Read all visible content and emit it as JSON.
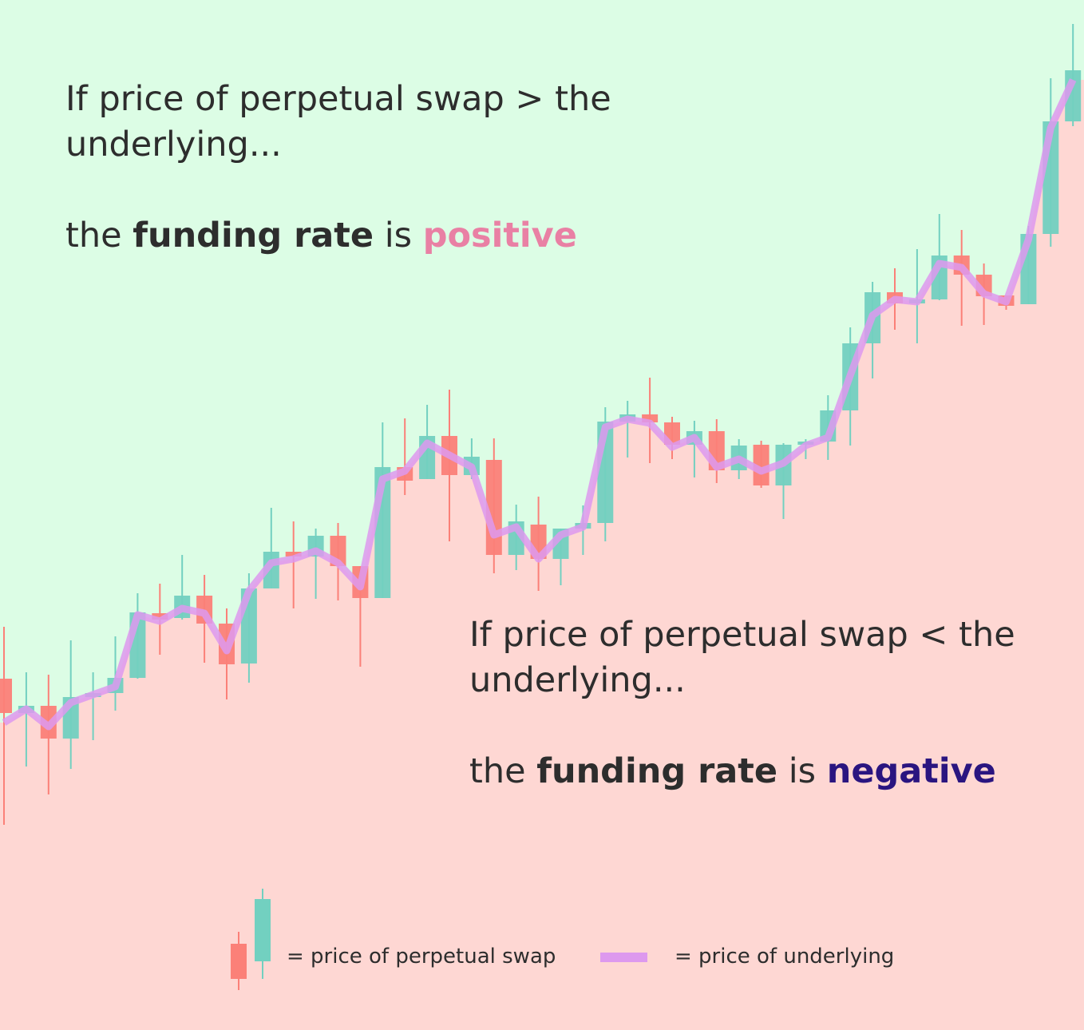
{
  "chart_data": {
    "type": "candlestick",
    "ylim": [
      0,
      1290
    ],
    "annotations": [
      {
        "text": "If price of perpetual swap > the underlying...",
        "prefix": "the",
        "bold": "funding rate",
        "verb": "is",
        "emphasis": "positive",
        "emphasis_color": "#e980a4"
      },
      {
        "text": "If price of perpetual swap < the underlying...",
        "prefix": "the",
        "bold": "funding rate",
        "verb": "is",
        "emphasis": "negative",
        "emphasis_color": "#2a1580"
      }
    ],
    "background_above": "#dcfde5",
    "background_below": "#fed7d3",
    "series": [
      {
        "name": "= price of perpetual swap",
        "up_color": "#72d0c0",
        "down_color": "#fb8078",
        "open": [
          440,
          397,
          406,
          365,
          417,
          422,
          441,
          522,
          516,
          544,
          509,
          459,
          553,
          599,
          593,
          619,
          581,
          541,
          705,
          690,
          744,
          695,
          714,
          595,
          633,
          590,
          628,
          635,
          762,
          771,
          761,
          733,
          750,
          701,
          733,
          682,
          733,
          737,
          776,
          860,
          924,
          910,
          915,
          970,
          946,
          920,
          909,
          997,
          1138
        ],
        "high": [
          505,
          448,
          445,
          488,
          448,
          493,
          547,
          559,
          595,
          570,
          528,
          572,
          654,
          637,
          628,
          635,
          581,
          761,
          766,
          783,
          802,
          741,
          741,
          658,
          668,
          628,
          657,
          780,
          788,
          817,
          768,
          763,
          765,
          740,
          738,
          735,
          740,
          795,
          880,
          937,
          954,
          978,
          1022,
          1002,
          960,
          920,
          1007,
          1192,
          1260
        ],
        "low": [
          257,
          330,
          295,
          327,
          363,
          400,
          440,
          470,
          514,
          460,
          414,
          435,
          553,
          528,
          540,
          538,
          455,
          541,
          670,
          690,
          612,
          690,
          572,
          576,
          550,
          557,
          595,
          612,
          717,
          710,
          715,
          692,
          685,
          690,
          679,
          640,
          715,
          714,
          732,
          816,
          877,
          860,
          914,
          882,
          883,
          902,
          909,
          981,
          1132
        ],
        "close": [
          397,
          406,
          365,
          417,
          422,
          441,
          523,
          514,
          544,
          509,
          458,
          553,
          599,
          593,
          619,
          581,
          541,
          705,
          688,
          744,
          695,
          718,
          595,
          637,
          590,
          628,
          635,
          762,
          771,
          761,
          733,
          750,
          701,
          732,
          682,
          733,
          737,
          776,
          860,
          924,
          910,
          915,
          970,
          946,
          919,
          907,
          997,
          1138,
          1202
        ]
      },
      {
        "name": "= price of underlying",
        "color": "#dd99ee",
        "values": [
          385,
          402,
          380,
          410,
          420,
          430,
          520,
          512,
          528,
          522,
          475,
          550,
          585,
          590,
          600,
          585,
          555,
          690,
          700,
          735,
          720,
          705,
          620,
          630,
          590,
          620,
          630,
          755,
          765,
          760,
          730,
          742,
          705,
          715,
          700,
          710,
          732,
          742,
          820,
          895,
          915,
          912,
          960,
          955,
          922,
          912,
          990,
          1130,
          1190
        ]
      }
    ]
  }
}
